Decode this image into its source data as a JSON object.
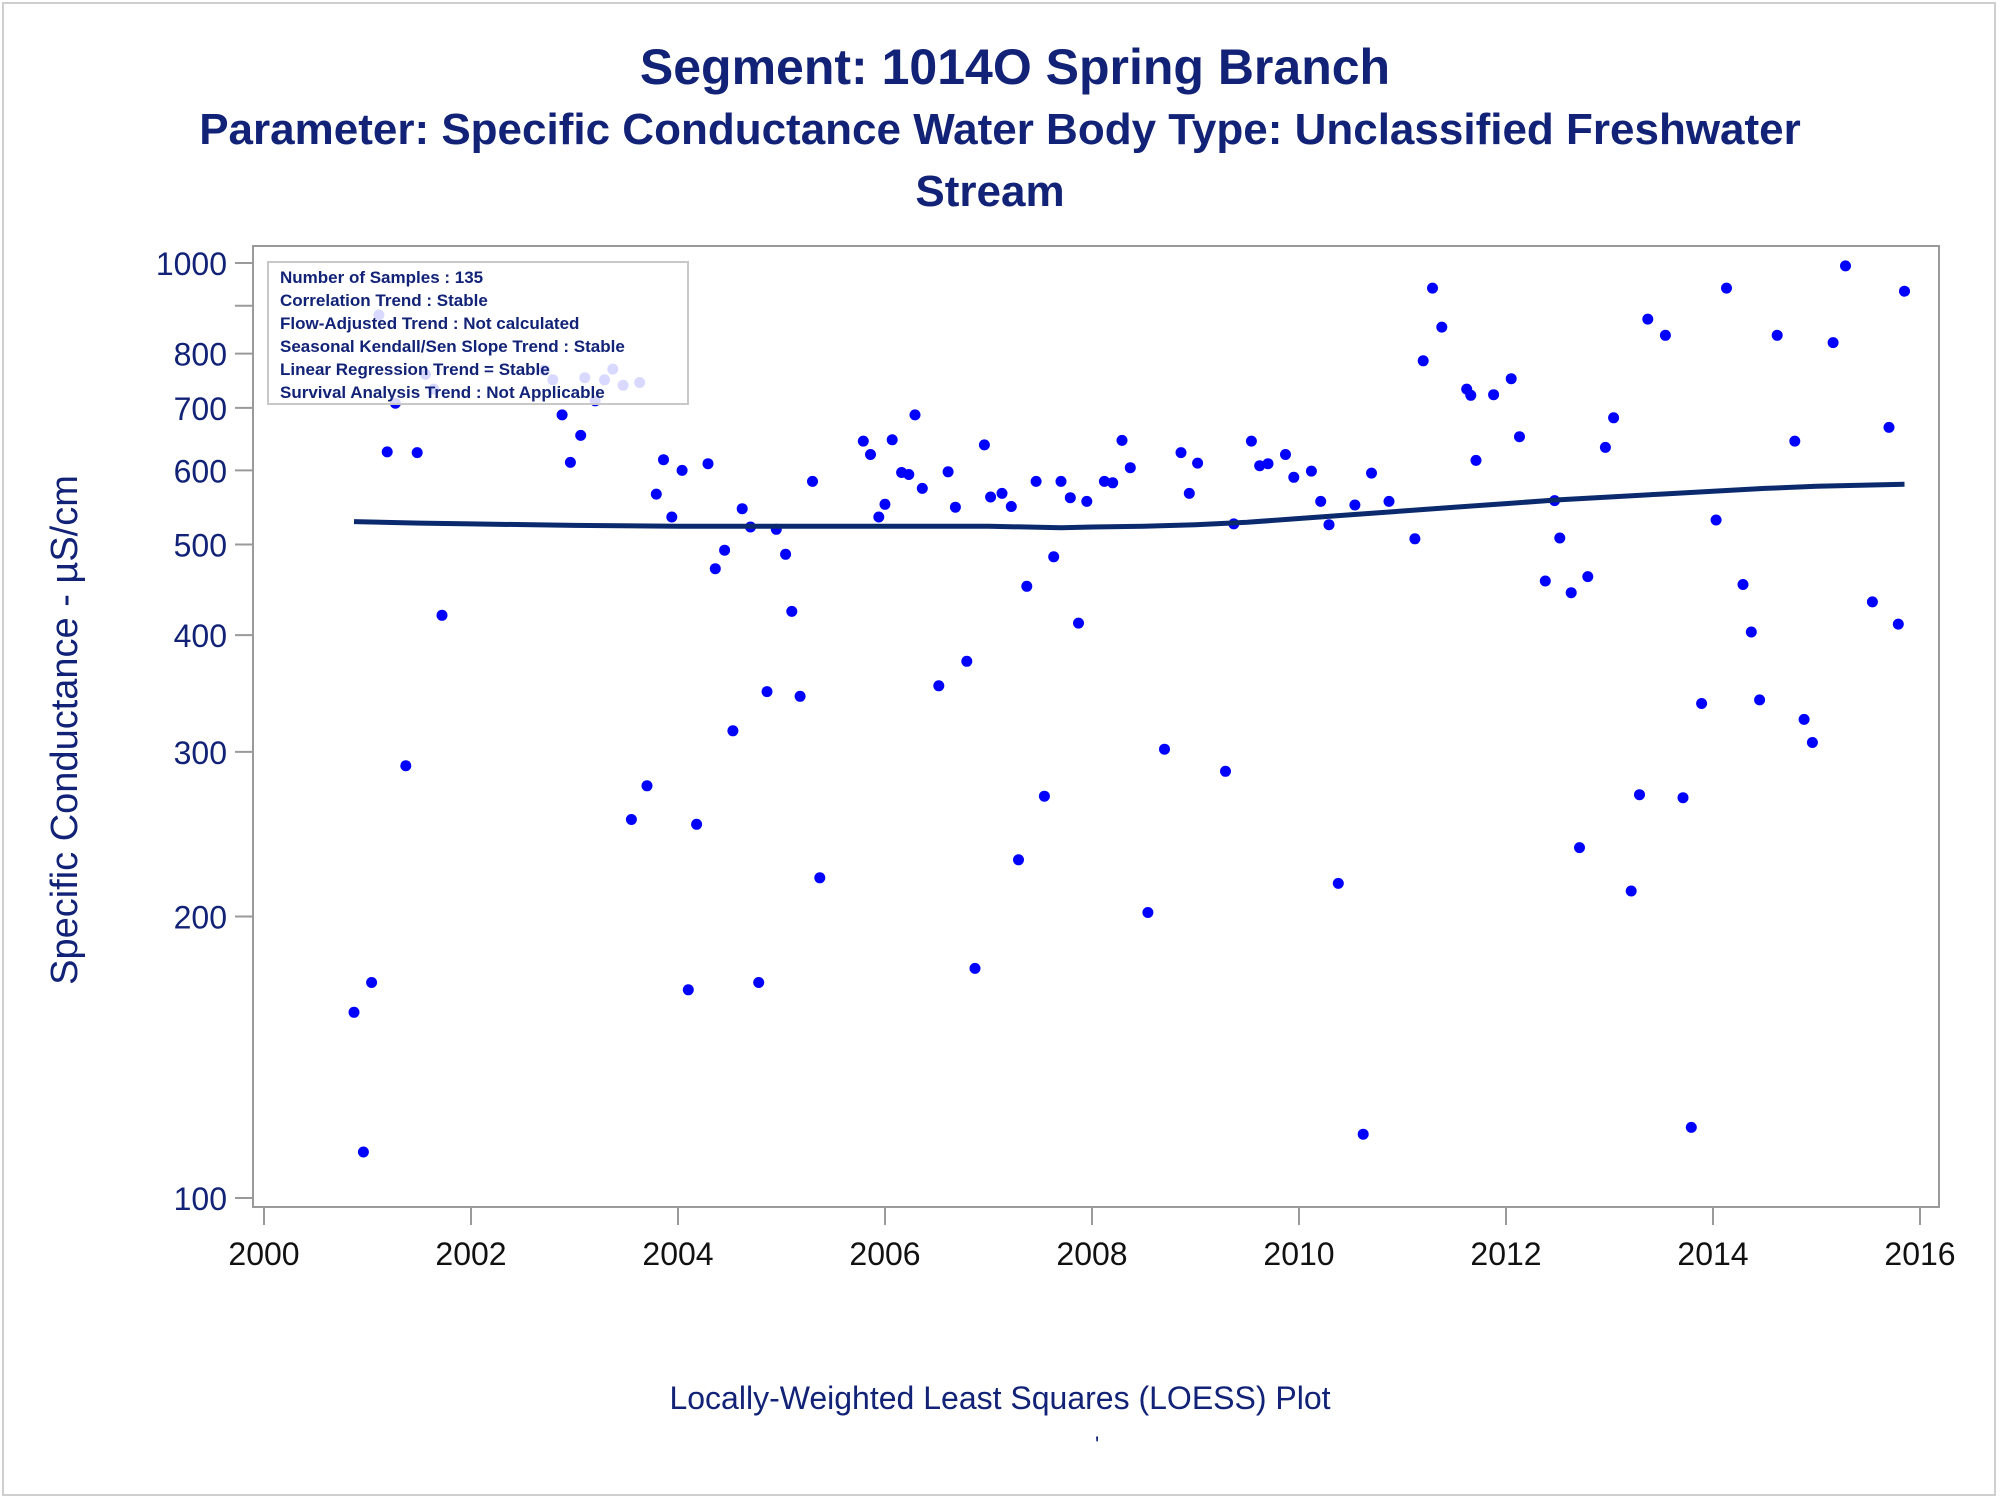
{
  "header": {
    "title": "Segment: 1014O  Spring Branch",
    "subtitle_line1": "Parameter: Specific Conductance   Water Body Type: Unclassified Freshwater",
    "subtitle_line2": "Stream"
  },
  "footnote": "Locally-Weighted Least Squares (LOESS) Plot",
  "footnote_mark": "'",
  "stats_box": [
    "Number of Samples : 135",
    "Correlation Trend : Stable",
    "Flow-Adjusted Trend : Not calculated",
    "Seasonal Kendall/Sen Slope Trend : Stable",
    "Linear Regression Trend = Stable",
    "Survival Analysis Trend : Not Applicable"
  ],
  "colors": {
    "text": "#112277",
    "points": "#0000ff",
    "loess_line": "#0b2a6e",
    "axis": "#9a9a9a"
  },
  "chart_data": {
    "type": "scatter",
    "title": "Segment: 1014O  Spring Branch",
    "xlabel": "",
    "ylabel": "Specific Conductance -  µS/cm",
    "x_scale": "time (year)",
    "y_scale": "log",
    "xlim": [
      2000,
      2016
    ],
    "ylim": [
      100,
      1000
    ],
    "x_ticks": [
      2000,
      2002,
      2004,
      2006,
      2008,
      2010,
      2012,
      2014,
      2016
    ],
    "y_ticks": [
      100,
      200,
      300,
      400,
      500,
      600,
      700,
      800,
      1000
    ],
    "y_minor_ticks": [
      900
    ],
    "grid": false,
    "points": [
      [
        2000.87,
        158
      ],
      [
        2000.96,
        112
      ],
      [
        2001.04,
        170
      ],
      [
        2001.11,
        880
      ],
      [
        2001.19,
        628
      ],
      [
        2001.27,
        708
      ],
      [
        2001.37,
        290
      ],
      [
        2001.48,
        627
      ],
      [
        2001.56,
        760
      ],
      [
        2001.64,
        733
      ],
      [
        2001.72,
        420
      ],
      [
        2002.71,
        768
      ],
      [
        2002.79,
        750
      ],
      [
        2002.88,
        688
      ],
      [
        2002.96,
        612
      ],
      [
        2003.06,
        654
      ],
      [
        2003.1,
        754
      ],
      [
        2003.2,
        712
      ],
      [
        2003.29,
        750
      ],
      [
        2003.37,
        770
      ],
      [
        2003.47,
        740
      ],
      [
        2003.55,
        254
      ],
      [
        2003.63,
        745
      ],
      [
        2003.7,
        276
      ],
      [
        2003.79,
        566
      ],
      [
        2003.86,
        616
      ],
      [
        2003.94,
        535
      ],
      [
        2004.04,
        600
      ],
      [
        2004.1,
        167
      ],
      [
        2004.18,
        251
      ],
      [
        2004.29,
        610
      ],
      [
        2004.36,
        471
      ],
      [
        2004.45,
        493
      ],
      [
        2004.53,
        316
      ],
      [
        2004.62,
        546
      ],
      [
        2004.7,
        522
      ],
      [
        2004.78,
        170
      ],
      [
        2004.86,
        348
      ],
      [
        2004.95,
        519
      ],
      [
        2005.04,
        488
      ],
      [
        2005.1,
        424
      ],
      [
        2005.18,
        344
      ],
      [
        2005.3,
        584
      ],
      [
        2005.37,
        220
      ],
      [
        2005.79,
        645
      ],
      [
        2005.86,
        624
      ],
      [
        2005.94,
        535
      ],
      [
        2006.0,
        552
      ],
      [
        2006.07,
        647
      ],
      [
        2006.16,
        597
      ],
      [
        2006.23,
        594
      ],
      [
        2006.29,
        688
      ],
      [
        2006.36,
        574
      ],
      [
        2006.52,
        353
      ],
      [
        2006.61,
        598
      ],
      [
        2006.68,
        548
      ],
      [
        2006.79,
        375
      ],
      [
        2006.87,
        176
      ],
      [
        2006.96,
        639
      ],
      [
        2007.02,
        562
      ],
      [
        2007.13,
        567
      ],
      [
        2007.22,
        549
      ],
      [
        2007.29,
        230
      ],
      [
        2007.37,
        451
      ],
      [
        2007.46,
        584
      ],
      [
        2007.54,
        269
      ],
      [
        2007.63,
        485
      ],
      [
        2007.7,
        584
      ],
      [
        2007.79,
        561
      ],
      [
        2007.87,
        412
      ],
      [
        2007.95,
        556
      ],
      [
        2008.12,
        584
      ],
      [
        2008.2,
        582
      ],
      [
        2008.29,
        646
      ],
      [
        2008.37,
        604
      ],
      [
        2008.54,
        202
      ],
      [
        2008.7,
        302
      ],
      [
        2008.86,
        627
      ],
      [
        2008.94,
        567
      ],
      [
        2009.02,
        611
      ],
      [
        2009.29,
        286
      ],
      [
        2009.37,
        526
      ],
      [
        2009.54,
        645
      ],
      [
        2009.62,
        607
      ],
      [
        2009.7,
        610
      ],
      [
        2009.87,
        624
      ],
      [
        2009.95,
        590
      ],
      [
        2010.12,
        599
      ],
      [
        2010.21,
        556
      ],
      [
        2010.29,
        525
      ],
      [
        2010.38,
        217
      ],
      [
        2010.54,
        551
      ],
      [
        2010.62,
        117
      ],
      [
        2010.7,
        596
      ],
      [
        2010.87,
        556
      ],
      [
        2011.12,
        507
      ],
      [
        2011.2,
        786
      ],
      [
        2011.29,
        940
      ],
      [
        2011.38,
        854
      ],
      [
        2011.62,
        733
      ],
      [
        2011.66,
        722
      ],
      [
        2011.71,
        615
      ],
      [
        2011.88,
        723
      ],
      [
        2012.05,
        752
      ],
      [
        2012.13,
        652
      ],
      [
        2012.38,
        457
      ],
      [
        2012.47,
        557
      ],
      [
        2012.52,
        508
      ],
      [
        2012.63,
        444
      ],
      [
        2012.71,
        237
      ],
      [
        2012.79,
        462
      ],
      [
        2012.96,
        635
      ],
      [
        2013.04,
        683
      ],
      [
        2013.21,
        213
      ],
      [
        2013.29,
        270
      ],
      [
        2013.37,
        871
      ],
      [
        2013.54,
        837
      ],
      [
        2013.71,
        268
      ],
      [
        2013.79,
        119
      ],
      [
        2013.89,
        338
      ],
      [
        2014.03,
        531
      ],
      [
        2014.13,
        940
      ],
      [
        2014.29,
        453
      ],
      [
        2014.37,
        403
      ],
      [
        2014.45,
        341
      ],
      [
        2014.62,
        837
      ],
      [
        2014.79,
        645
      ],
      [
        2014.88,
        325
      ],
      [
        2014.96,
        307
      ],
      [
        2015.16,
        822
      ],
      [
        2015.28,
        993
      ],
      [
        2015.54,
        434
      ],
      [
        2015.7,
        667
      ],
      [
        2015.79,
        411
      ],
      [
        2015.85,
        933
      ]
    ],
    "loess": {
      "x": [
        2000.87,
        2001.5,
        2002.0,
        2003.0,
        2004.0,
        2005.0,
        2006.0,
        2007.0,
        2007.7,
        2008.0,
        2008.5,
        2009.0,
        2009.5,
        2010.0,
        2010.5,
        2011.0,
        2011.5,
        2012.0,
        2012.5,
        2013.0,
        2013.5,
        2014.0,
        2014.5,
        2015.0,
        2015.85
      ],
      "y": [
        529,
        527,
        526,
        524,
        523,
        523,
        523,
        523,
        521,
        522,
        523,
        525,
        528,
        533,
        538,
        543,
        548,
        553,
        558,
        562,
        566,
        570,
        574,
        577,
        580
      ]
    }
  }
}
